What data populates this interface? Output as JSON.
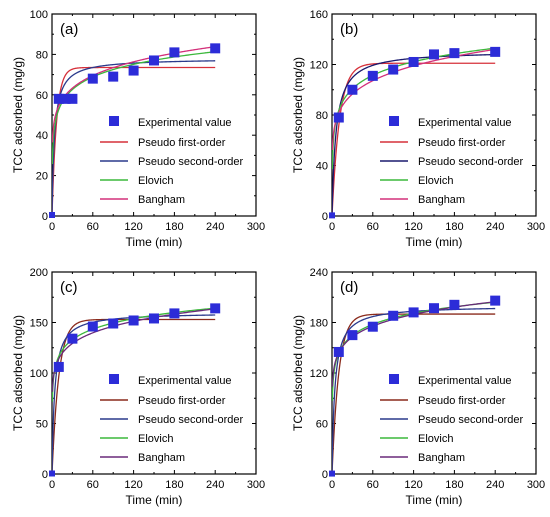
{
  "figure": {
    "panels": [
      {
        "label": "(a)",
        "xlabel": "Time (min)",
        "ylabel": "TCC adsorbed (mg/g)",
        "xlim": [
          0,
          300
        ],
        "ylim": [
          0,
          100
        ],
        "xticks": [
          0,
          60,
          120,
          180,
          240,
          300
        ],
        "yticks": [
          0,
          20,
          40,
          60,
          80,
          100
        ],
        "legend_position": "middle-right",
        "legend": {
          "marker": "Experimental value",
          "lines": [
            {
              "name": "Pseudo first-order",
              "color": "#d6303a"
            },
            {
              "name": "Pseudo second-order",
              "color": "#2a3a8c"
            },
            {
              "name": "Elovich",
              "color": "#3cb83c"
            },
            {
              "name": "Bangham",
              "color": "#d3307a"
            }
          ]
        },
        "chart_data": {
          "type": "scatter",
          "x": [
            0,
            10,
            20,
            30,
            60,
            90,
            120,
            150,
            180,
            240
          ],
          "y": [
            0.5,
            58,
            58,
            58,
            68,
            69,
            72,
            77,
            81,
            83
          ],
          "marker_color": "#2c2cd8",
          "models": {
            "pfo": {
              "qe": 73.5,
              "k": 0.15
            },
            "pso": {
              "qe": 78.0,
              "k": 0.0035
            },
            "elovich": {
              "a": 32,
              "b": 9.0
            },
            "bangham": {
              "k": 40,
              "n": 0.135
            }
          }
        }
      },
      {
        "label": "(b)",
        "xlabel": "Time (min)",
        "ylabel": "TCC adsorbed (mg/g)",
        "xlim": [
          0,
          300
        ],
        "ylim": [
          0,
          160
        ],
        "xticks": [
          0,
          60,
          120,
          180,
          240,
          300
        ],
        "yticks": [
          0,
          40,
          80,
          120,
          160
        ],
        "legend_position": "middle-right",
        "legend": {
          "marker": "Experimental value",
          "lines": [
            {
              "name": "Pseudo first-order",
              "color": "#d6303a"
            },
            {
              "name": "Pseudo second-order",
              "color": "#1a1a6e"
            },
            {
              "name": "Elovich",
              "color": "#3cb83c"
            },
            {
              "name": "Bangham",
              "color": "#d3307a"
            }
          ]
        },
        "chart_data": {
          "type": "scatter",
          "x": [
            0,
            10,
            30,
            60,
            90,
            120,
            150,
            180,
            240
          ],
          "y": [
            0.5,
            78,
            100,
            111,
            116,
            122,
            128,
            129,
            130
          ],
          "marker_color": "#2c2cd8",
          "models": {
            "pfo": {
              "qe": 121,
              "k": 0.09
            },
            "pso": {
              "qe": 131,
              "k": 0.0013
            },
            "elovich": {
              "a": 48,
              "b": 15.5
            },
            "bangham": {
              "k": 58,
              "n": 0.15
            }
          }
        }
      },
      {
        "label": "(c)",
        "xlabel": "Time (min)",
        "ylabel": "TCC adsorbed (mg/g)",
        "xlim": [
          0,
          300
        ],
        "ylim": [
          0,
          200
        ],
        "xticks": [
          0,
          60,
          120,
          180,
          240,
          300
        ],
        "yticks": [
          0,
          50,
          100,
          150,
          200
        ],
        "legend_position": "middle-right",
        "legend": {
          "marker": "Experimental value",
          "lines": [
            {
              "name": "Pseudo first-order",
              "color": "#8a2a1c"
            },
            {
              "name": "Pseudo second-order",
              "color": "#2a3a8c"
            },
            {
              "name": "Elovich",
              "color": "#3cb83c"
            },
            {
              "name": "Bangham",
              "color": "#6a2a7a"
            }
          ]
        },
        "chart_data": {
          "type": "scatter",
          "x": [
            0,
            10,
            30,
            60,
            90,
            120,
            150,
            180,
            240
          ],
          "y": [
            0.5,
            106,
            134,
            146,
            149,
            152,
            154,
            159,
            164
          ],
          "marker_color": "#2c2cd8",
          "models": {
            "pfo": {
              "qe": 153,
              "k": 0.1
            },
            "pso": {
              "qe": 160,
              "k": 0.0016
            },
            "elovich": {
              "a": 82,
              "b": 15.0
            },
            "bangham": {
              "k": 88,
              "n": 0.113
            }
          }
        }
      },
      {
        "label": "(d)",
        "xlabel": "Time (min)",
        "ylabel": "TCC adsorbed (mg/g)",
        "xlim": [
          0,
          300
        ],
        "ylim": [
          0,
          240
        ],
        "xticks": [
          0,
          60,
          120,
          180,
          240,
          300
        ],
        "yticks": [
          0,
          60,
          120,
          180,
          240
        ],
        "legend_position": "middle-right",
        "legend": {
          "marker": "Experimental value",
          "lines": [
            {
              "name": "Pseudo first-order",
              "color": "#8a2a1c"
            },
            {
              "name": "Pseudo second-order",
              "color": "#2a3a8c"
            },
            {
              "name": "Elovich",
              "color": "#3cb83c"
            },
            {
              "name": "Bangham",
              "color": "#6a2a7a"
            }
          ]
        },
        "chart_data": {
          "type": "scatter",
          "x": [
            0,
            10,
            30,
            60,
            90,
            120,
            150,
            180,
            240
          ],
          "y": [
            0.5,
            145,
            165,
            175,
            188,
            192,
            197,
            201,
            206
          ],
          "marker_color": "#2c2cd8",
          "models": {
            "pfo": {
              "qe": 190,
              "k": 0.1
            },
            "pso": {
              "qe": 200,
              "k": 0.0012
            },
            "elovich": {
              "a": 100,
              "b": 19.0
            },
            "bangham": {
              "k": 112,
              "n": 0.11
            }
          }
        }
      }
    ]
  }
}
